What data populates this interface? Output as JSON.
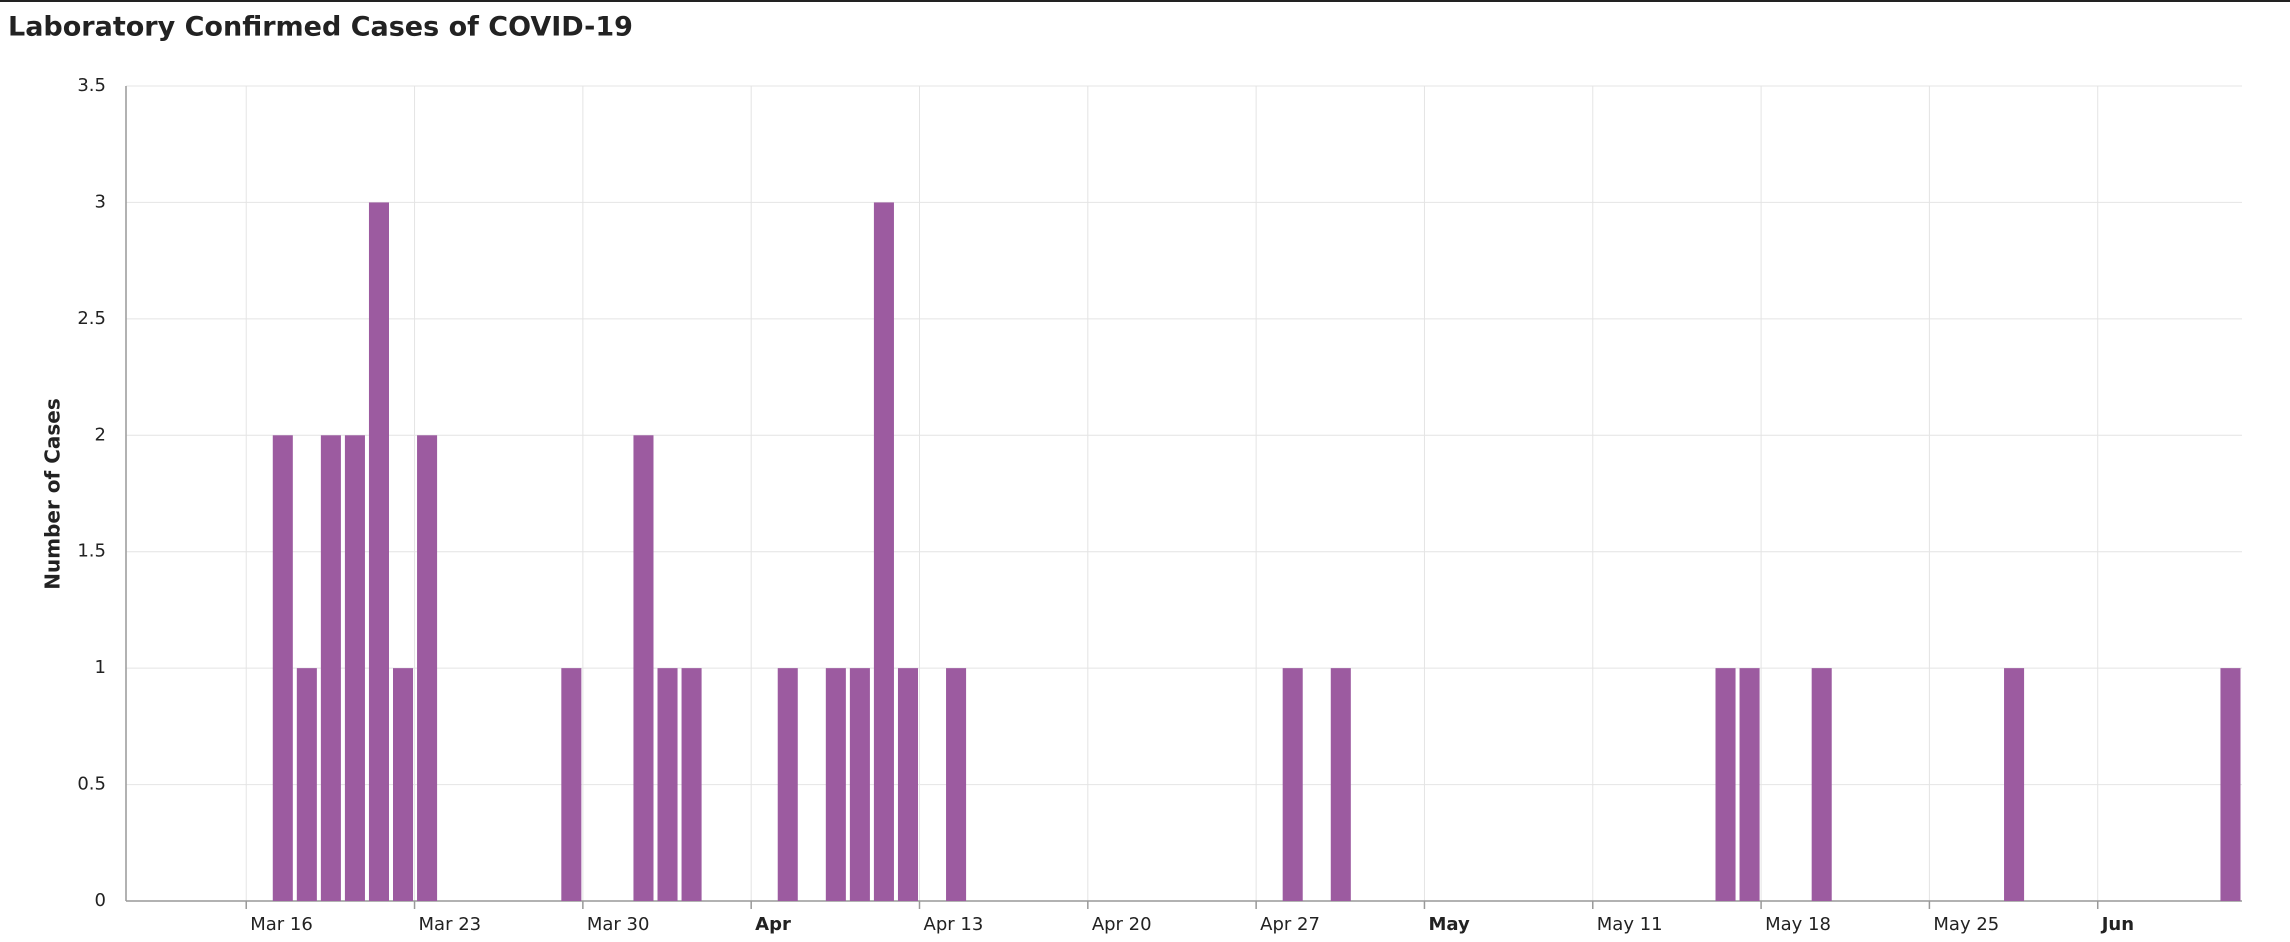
{
  "chart_data": {
    "type": "bar",
    "title": "Laboratory Confirmed Cases of COVID-19",
    "y_label": "Number of Cases",
    "color": "#9c5ba0",
    "grid": true,
    "x": [
      "Mar 17",
      "Mar 18",
      "Mar 19",
      "Mar 20",
      "Mar 21",
      "Mar 22",
      "Mar 23",
      "Mar 29",
      "Apr 1",
      "Apr 2",
      "Apr 3",
      "Apr 7",
      "Apr 9",
      "Apr 10",
      "Apr 11",
      "Apr 12",
      "Apr 14",
      "Apr 28",
      "Apr 30",
      "May 16",
      "May 17",
      "May 20",
      "May 28",
      "Jun 6"
    ],
    "values": [
      2,
      1,
      2,
      2,
      3,
      1,
      2,
      1,
      2,
      1,
      1,
      1,
      1,
      1,
      3,
      1,
      1,
      1,
      1,
      1,
      1,
      1,
      1,
      1
    ],
    "xlim": [
      "Mar 11",
      "Jun 7"
    ],
    "xticks": [
      "Mar 16",
      "Mar 23",
      "Mar 30",
      {
        "value": "Apr 6",
        "label": "Apr"
      },
      "Apr 13",
      "Apr 20",
      "Apr 27",
      {
        "value": "May 4",
        "label": "May"
      },
      "May 11",
      "May 18",
      "May 25",
      {
        "value": "Jun 1",
        "label": "Jun"
      }
    ],
    "ylim": [
      0,
      3.5
    ],
    "yticks": [
      0,
      0.5,
      1,
      1.5,
      2,
      2.5,
      3,
      3.5
    ]
  }
}
